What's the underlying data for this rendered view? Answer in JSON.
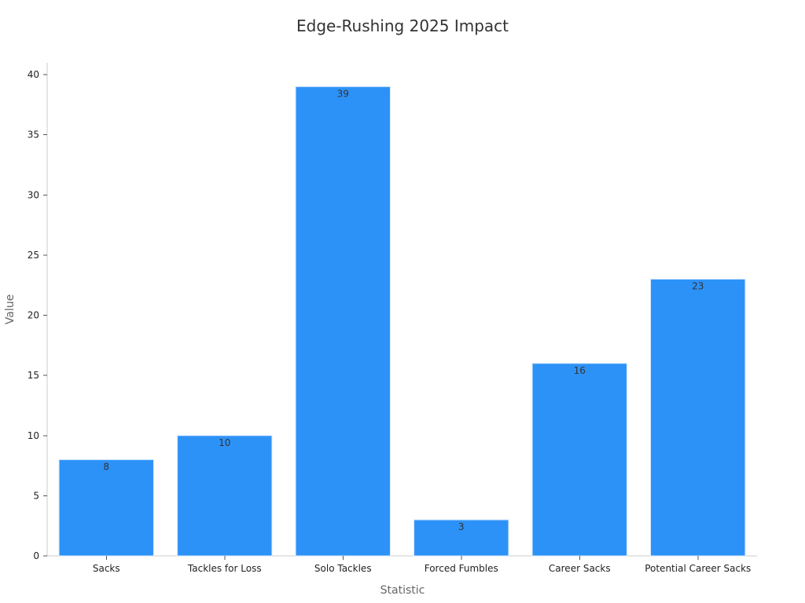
{
  "chart_data": {
    "type": "bar",
    "title": "Edge-Rushing 2025 Impact",
    "xlabel": "Statistic",
    "ylabel": "Value",
    "categories": [
      "Sacks",
      "Tackles for Loss",
      "Solo Tackles",
      "Forced Fumbles",
      "Career Sacks",
      "Potential Career Sacks"
    ],
    "values": [
      8,
      10,
      39,
      3,
      16,
      23
    ],
    "ylim": [
      0,
      40
    ],
    "yticks": [
      0,
      5,
      10,
      15,
      20,
      25,
      30,
      35,
      40
    ],
    "grid": false,
    "legend": "none",
    "bar_color": "#2d92f8",
    "data_labels": true
  }
}
